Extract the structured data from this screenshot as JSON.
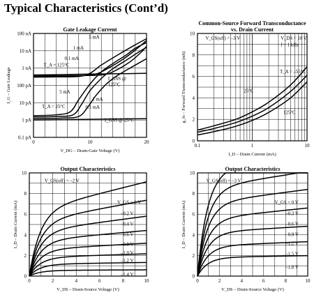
{
  "page": {
    "title": "Typical Characteristics (Cont’d)"
  },
  "chart_data": [
    {
      "id": "gate-leakage",
      "type": "line",
      "title": "Gate Leakage Current",
      "xlabel": "V_DG – Drain-Gate Voltage (V)",
      "ylabel": "I_G – Gate Leakage",
      "x_scale": "linear",
      "y_scale": "log",
      "xlim": [
        0,
        20
      ],
      "x_ticks": [
        "0",
        "10",
        "20"
      ],
      "y_ticks": [
        "0.1 pA",
        "1 pA",
        "10 pA",
        "100 pA",
        "1 nA",
        "10 nA",
        "100 nA"
      ],
      "y_tick_values": [
        1e-13,
        1e-12,
        1e-11,
        1e-10,
        1e-09,
        1e-08,
        1e-07
      ],
      "grid": true,
      "series": [
        {
          "name": "5 mA (TA = 125°C)",
          "x": [
            0,
            4,
            8,
            10,
            12,
            15,
            18,
            20
          ],
          "y": [
            3e-10,
            3.1e-10,
            3.3e-10,
            5e-10,
            1.5e-09,
            6e-09,
            2.2e-08,
            5e-08
          ]
        },
        {
          "name": "1 mA (TA = 125°C)",
          "x": [
            0,
            4,
            8,
            11,
            13,
            16,
            18.5,
            20
          ],
          "y": [
            3.3e-10,
            3.4e-10,
            3.5e-10,
            4.5e-10,
            9e-10,
            3.5e-09,
            1.5e-08,
            4e-08
          ]
        },
        {
          "name": "0.1 mA (TA = 125°C)",
          "x": [
            0,
            4,
            8,
            12,
            14,
            17,
            19,
            20
          ],
          "y": [
            3.5e-10,
            3.6e-10,
            3.7e-10,
            4e-10,
            6e-10,
            2.2e-09,
            8e-09,
            1.8e-08
          ]
        },
        {
          "name": "IGSS @ 125°C",
          "x": [
            0,
            5,
            10,
            15,
            20
          ],
          "y": [
            4e-10,
            4.2e-10,
            4.5e-10,
            4.7e-10,
            5e-10
          ]
        },
        {
          "name": "5 mA (TA = 25°C)",
          "x": [
            0,
            4,
            6.5,
            8,
            10,
            12,
            14,
            16.5,
            18,
            20
          ],
          "y": [
            1.8e-12,
            2e-12,
            3e-12,
            1.5e-11,
            1.2e-10,
            6e-10,
            1.8e-09,
            6e-09,
            1.4e-08,
            3e-08
          ]
        },
        {
          "name": "1 mA (TA = 25°C)",
          "x": [
            0,
            4,
            7,
            8.5,
            10,
            12,
            14,
            16.5,
            18.5,
            20
          ],
          "y": [
            1.5e-12,
            1.6e-12,
            2e-12,
            8e-12,
            5e-11,
            2.5e-10,
            9e-10,
            3e-09,
            8e-09,
            1.6e-08
          ]
        },
        {
          "name": "0.1 mA (TA = 25°C)",
          "x": [
            0,
            5,
            8,
            9.5,
            11,
            13,
            15,
            17.5,
            20
          ],
          "y": [
            1.2e-12,
            1.3e-12,
            1.6e-12,
            5e-12,
            2.5e-11,
            1.3e-10,
            4e-10,
            1.2e-09,
            3.5e-09
          ]
        },
        {
          "name": "IGSS @ 25°C",
          "x": [
            0,
            5,
            10,
            15,
            20
          ],
          "y": [
            1e-12,
            1.05e-12,
            1.1e-12,
            1.15e-12,
            1.2e-12
          ]
        }
      ],
      "annotations": [
        {
          "text": "5 mA",
          "x": 9.8,
          "y": 5e-08
        },
        {
          "text": "1 mA",
          "x": 7.0,
          "y": 1.2e-08
        },
        {
          "text": "0.1 mA",
          "x": 5.5,
          "y": 3e-09
        },
        {
          "text": "T_A = 125°C",
          "x": 1.8,
          "y": 1.2e-09
        },
        {
          "text": "5 mA",
          "x": 4.6,
          "y": 3.5e-11
        },
        {
          "text": "I_GSS @",
          "x": 13.2,
          "y": 2e-10
        },
        {
          "text": "125°C",
          "x": 13.2,
          "y": 9e-11
        },
        {
          "text": "1 mA",
          "x": 10.4,
          "y": 1.3e-11
        },
        {
          "text": "0.1 mA",
          "x": 9.2,
          "y": 4.5e-12
        },
        {
          "text": "T_A = 25°C",
          "x": 1.5,
          "y": 5e-12
        },
        {
          "text": "I_GSS @ 25°C",
          "x": 12.6,
          "y": 8e-13
        }
      ]
    },
    {
      "id": "transconductance",
      "type": "line",
      "title": "Common-Source Forward Transconductance",
      "subtitle": "vs. Drain Current",
      "xlabel": "I_D – Drain Current (mA)",
      "ylabel": "g_fs – Forward Transconductance (mS)",
      "x_scale": "log",
      "y_scale": "linear",
      "xlim": [
        0.1,
        10
      ],
      "ylim": [
        0,
        10
      ],
      "x_ticks": [
        "0.1",
        "1",
        "10"
      ],
      "y_ticks": [
        "0",
        "2",
        "4",
        "6",
        "8",
        "10"
      ],
      "grid": true,
      "series": [
        {
          "name": "TA = –55°C",
          "x": [
            0.1,
            0.2,
            0.5,
            1,
            2,
            5,
            10
          ],
          "y": [
            1.0,
            1.4,
            2.0,
            2.7,
            3.6,
            5.2,
            6.9
          ]
        },
        {
          "name": "25°C",
          "x": [
            0.1,
            0.2,
            0.5,
            1,
            2,
            5,
            10
          ],
          "y": [
            0.8,
            1.15,
            1.7,
            2.3,
            3.1,
            4.6,
            6.1
          ]
        },
        {
          "name": "125°C",
          "x": [
            0.1,
            0.2,
            0.5,
            1,
            2,
            5,
            10
          ],
          "y": [
            0.55,
            0.85,
            1.35,
            1.9,
            2.65,
            4.0,
            5.5
          ]
        }
      ],
      "annotations": [
        {
          "text": "V_GS(off) = –3 V",
          "x": 0.14,
          "y": 9.4
        },
        {
          "text": "V_DS = 10 V",
          "x": 3.3,
          "y": 9.4
        },
        {
          "text": "f = 1 kHz",
          "x": 3.3,
          "y": 8.8
        },
        {
          "text": "T_A = –55°C",
          "x": 3.2,
          "y": 6.3
        },
        {
          "text": "25°C",
          "x": 0.7,
          "y": 4.5
        },
        {
          "text": "125°C",
          "x": 3.7,
          "y": 2.5
        }
      ]
    },
    {
      "id": "output-1",
      "type": "line",
      "title": "Output Characteristics",
      "xlabel": "V_DS – Drain-Source Voltage (V)",
      "ylabel": "I_D – Drain Current (mA)",
      "xlim": [
        0,
        10
      ],
      "ylim": [
        0,
        10
      ],
      "x_ticks": [
        "0",
        "2",
        "4",
        "6",
        "8",
        "10"
      ],
      "y_ticks": [
        "0",
        "2",
        "4",
        "6",
        "8",
        "10"
      ],
      "grid": true,
      "curve_model": "saturating",
      "series": [
        {
          "name": "V_GS = 0 V",
          "isat": 6.3,
          "slope": 0.045
        },
        {
          "name": "–0.2 V",
          "isat": 5.25,
          "slope": 0.04
        },
        {
          "name": "–0.4 V",
          "isat": 4.3,
          "slope": 0.035
        },
        {
          "name": "–0.6 V",
          "isat": 3.4,
          "slope": 0.03
        },
        {
          "name": "–0.8 V",
          "isat": 2.55,
          "slope": 0.025
        },
        {
          "name": "–1.0 V",
          "isat": 1.8,
          "slope": 0.02
        },
        {
          "name": "–1.2 V",
          "isat": 1.15,
          "slope": 0.015
        },
        {
          "name": "–1.4 V",
          "isat": 0.55,
          "slope": 0.01
        }
      ],
      "annotations": [
        {
          "text": "V_GS(off) = –2 V",
          "x": 1.3,
          "y": 9.1
        },
        {
          "text": "V_GS = 0 V",
          "x": 7.5,
          "y": 7.0
        },
        {
          "text": "–0.2 V",
          "x": 7.8,
          "y": 5.9
        },
        {
          "text": "–0.4 V",
          "x": 7.8,
          "y": 4.9
        },
        {
          "text": "–0.6 V",
          "x": 7.8,
          "y": 3.9
        },
        {
          "text": "–0.8 V",
          "x": 7.8,
          "y": 2.95
        },
        {
          "text": "–1.0 V",
          "x": 7.8,
          "y": 2.1
        },
        {
          "text": "–1.2 V",
          "x": 7.8,
          "y": 1.35
        },
        {
          "text": "–1.4 V",
          "x": 7.8,
          "y": 0.0
        }
      ]
    },
    {
      "id": "output-2",
      "type": "line",
      "title": "Output Characteristics",
      "xlabel": "V_DS – Drain-Source Voltage (V)",
      "ylabel": "I_D – Drain Current (mA)",
      "xlim": [
        0,
        10
      ],
      "ylim": [
        0,
        10
      ],
      "x_ticks": [
        "0",
        "2",
        "4",
        "6",
        "8",
        "10"
      ],
      "y_ticks": [
        "0",
        "2",
        "4",
        "6",
        "8",
        "10"
      ],
      "grid": true,
      "curve_model": "saturating",
      "series": [
        {
          "name": "V_GS = 0 V",
          "isat": 10.1,
          "slope": 0.02
        },
        {
          "name": "–0.3 V",
          "isat": 8.45,
          "slope": 0.02
        },
        {
          "name": "–0.6 V",
          "isat": 7.0,
          "slope": 0.02
        },
        {
          "name": "–0.9 V",
          "isat": 5.5,
          "slope": 0.02
        },
        {
          "name": "–1.2 V",
          "isat": 4.2,
          "slope": 0.015
        },
        {
          "name": "–1.5 V",
          "isat": 2.9,
          "slope": 0.015
        },
        {
          "name": "–1.8 V",
          "isat": 1.8,
          "slope": 0.01
        }
      ],
      "annotations": [
        {
          "text": "V_GS(off) = –3 V",
          "x": 0.8,
          "y": 9.1
        },
        {
          "text": "V_GS = 0 V",
          "x": 7.0,
          "y": 7.0
        },
        {
          "text": "–0.3 V",
          "x": 8.0,
          "y": 5.9
        },
        {
          "text": "–0.6 V",
          "x": 8.0,
          "y": 4.9
        },
        {
          "text": "–0.9 V",
          "x": 8.0,
          "y": 3.9
        },
        {
          "text": "–1.2 V",
          "x": 8.0,
          "y": 3.0
        },
        {
          "text": "–1.5 V",
          "x": 8.0,
          "y": 2.0
        },
        {
          "text": "–1.8 V",
          "x": 8.0,
          "y": 0.7
        }
      ]
    }
  ]
}
